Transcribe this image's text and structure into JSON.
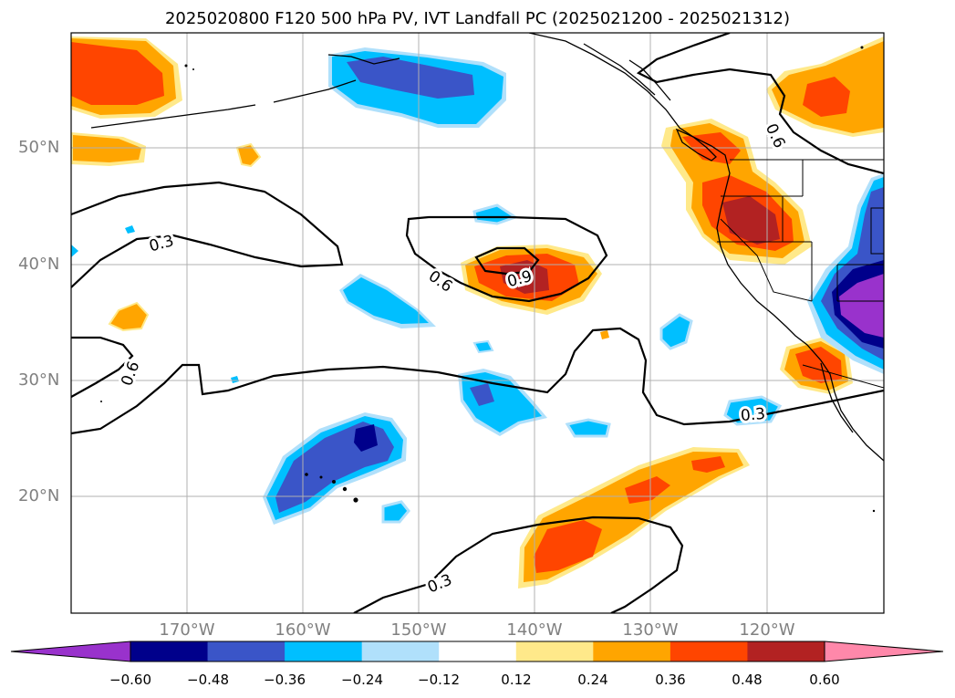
{
  "title": "2025020800 F120 500 hPa PV, IVT Landfall PC (2025021200 - 2025021312)",
  "lat_labels": [
    "50°N",
    "40°N",
    "30°N",
    "20°N"
  ],
  "lon_labels": [
    "170°W",
    "160°W",
    "150°W",
    "140°W",
    "130°W",
    "120°W"
  ],
  "contour_labels": [
    "0.3",
    "0.6",
    "0.9",
    "0.6",
    "0.6",
    "0.3",
    "0.3"
  ],
  "colorbar": {
    "tick_labels": [
      "−0.60",
      "−0.48",
      "−0.36",
      "−0.24",
      "−0.12",
      "0.12",
      "0.24",
      "0.36",
      "0.48",
      "0.60"
    ],
    "colors": [
      "#9932cc",
      "#00008b",
      "#3a55c8",
      "#00bfff",
      "#b0e0fb",
      "#ffffff",
      "#ffe98a",
      "#ffa500",
      "#ff4500",
      "#b22222",
      "#ff88aa"
    ]
  }
}
